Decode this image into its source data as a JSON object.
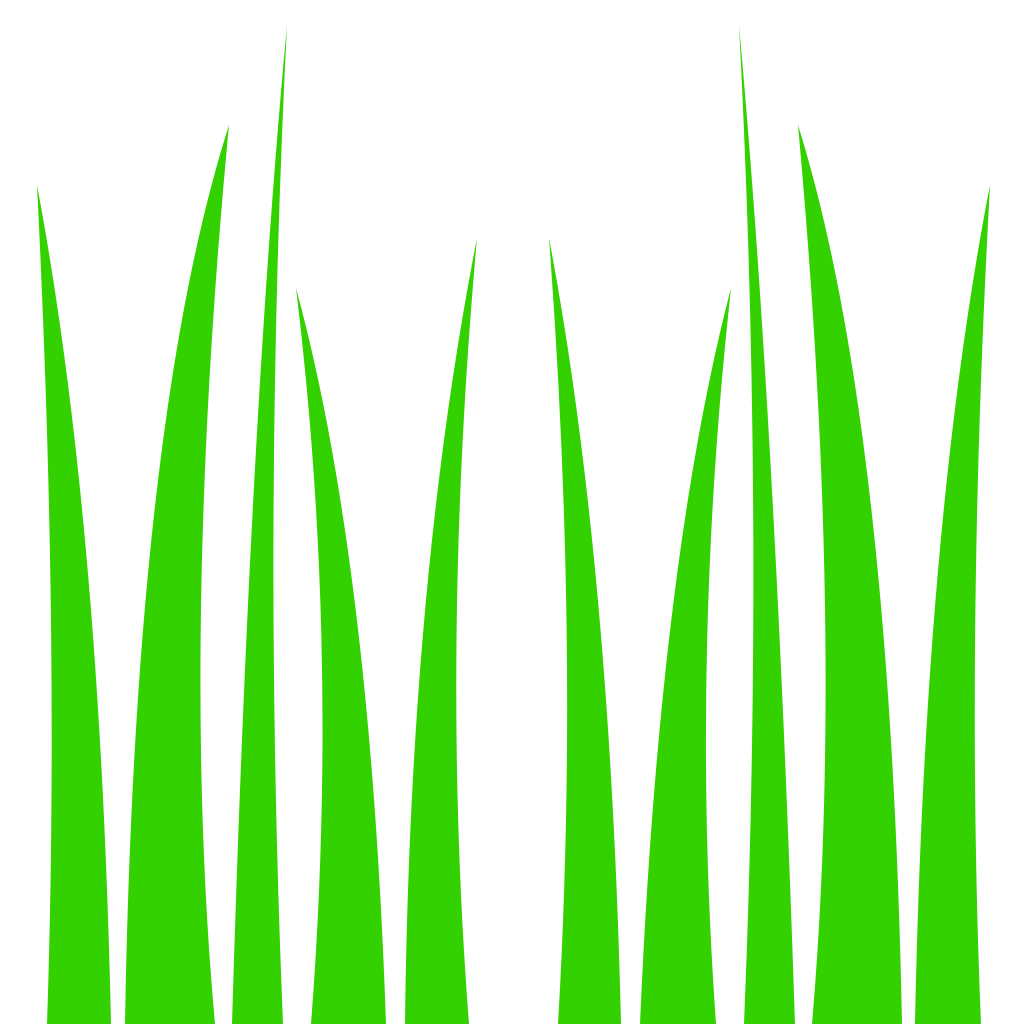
{
  "background_color": "#ffffff",
  "grass_color": "#33d100",
  "blade_count": 10
}
